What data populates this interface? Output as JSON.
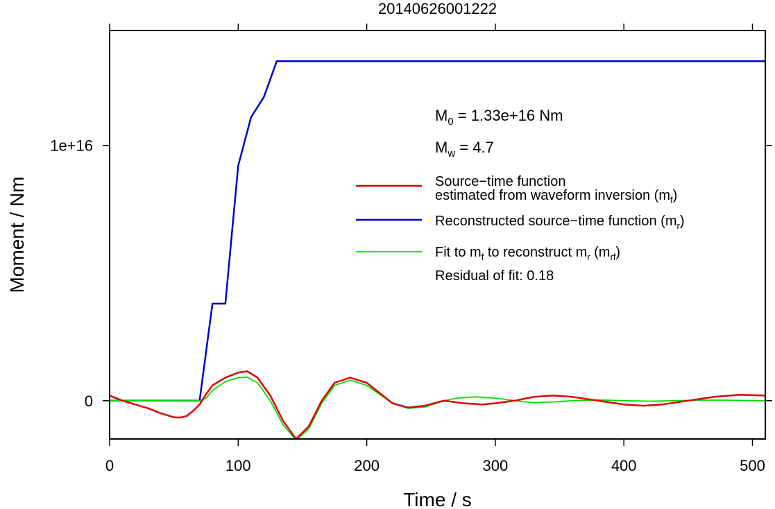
{
  "chart_data": {
    "type": "line",
    "title": "20140626001222",
    "xlabel": "Time / s",
    "ylabel": "Moment / Nm",
    "xlim": [
      0,
      510
    ],
    "ylim": [
      -1500000000000000.0,
      1.45e+16
    ],
    "x_ticks": [
      0,
      100,
      200,
      300,
      400,
      500
    ],
    "x_tick_labels": [
      "0",
      "100",
      "200",
      "300",
      "400",
      "500"
    ],
    "y_ticks": [
      0,
      1e+16
    ],
    "y_tick_labels": [
      "0",
      "1e+16"
    ],
    "grid": false,
    "annotations": {
      "m0": {
        "symbol": "M",
        "sub": "0",
        "text": " = 1.33e+16 Nm"
      },
      "mw": {
        "symbol": "M",
        "sub": "w",
        "text": " = 4.7"
      },
      "residual": "Residual of fit: 0.18"
    },
    "legend": {
      "placement": "right",
      "entries": [
        {
          "line1": "Source−time function",
          "line2": "estimated from waveform inversion (m",
          "sub": "f",
          "tail": ")",
          "color": "#dd0000"
        },
        {
          "line1": "Reconstructed source−time function (m",
          "sub": "r",
          "tail": ")",
          "color": "#0000cc"
        },
        {
          "line1": "Fit to m",
          "sub": "f",
          "mid": " to reconstruct m",
          "sub2": "r",
          "mid2": " (m",
          "sub3": "rf",
          "tail": ")",
          "color": "#00dd00"
        }
      ]
    },
    "series": [
      {
        "name": "Source−time function estimated from waveform inversion (mf)",
        "color": "#dd0000",
        "x": [
          0,
          10,
          20,
          30,
          40,
          50,
          55,
          60,
          65,
          70,
          75,
          80,
          90,
          100,
          107,
          115,
          125,
          135,
          145,
          155,
          165,
          175,
          187,
          200,
          210,
          220,
          232,
          245,
          260,
          275,
          290,
          300,
          315,
          330,
          345,
          360,
          380,
          400,
          415,
          430,
          450,
          470,
          490,
          510
        ],
        "y": [
          200000000000000.0,
          0,
          -150000000000000.0,
          -300000000000000.0,
          -500000000000000.0,
          -650000000000000.0,
          -660000000000000.0,
          -600000000000000.0,
          -400000000000000.0,
          -150000000000000.0,
          250000000000000.0,
          600000000000000.0,
          900000000000000.0,
          1100000000000000.0,
          1150000000000000.0,
          900000000000000.0,
          200000000000000.0,
          -800000000000000.0,
          -1500000000000000.0,
          -1000000000000000.0,
          0,
          700000000000000.0,
          900000000000000.0,
          700000000000000.0,
          300000000000000.0,
          -100000000000000.0,
          -270000000000000.0,
          -200000000000000.0,
          0,
          -100000000000000.0,
          -150000000000000.0,
          -100000000000000.0,
          0,
          150000000000000.0,
          200000000000000.0,
          150000000000000.0,
          0,
          -150000000000000.0,
          -200000000000000.0,
          -150000000000000.0,
          0,
          150000000000000.0,
          230000000000000.0,
          200000000000000.0
        ]
      },
      {
        "name": "Reconstructed source−time function (mr)",
        "color": "#0000cc",
        "x": [
          0,
          70,
          80,
          90,
          100,
          110,
          120,
          130,
          510
        ],
        "y": [
          0,
          0,
          3800000000000000.0,
          3800000000000000.0,
          9200000000000000.0,
          1.11e+16,
          1.19e+16,
          1.33e+16,
          1.33e+16
        ]
      },
      {
        "name": "Fit to mf to reconstruct mr (mrf)",
        "color": "#00dd00",
        "x": [
          0,
          70,
          75,
          80,
          90,
          100,
          107,
          115,
          125,
          135,
          145,
          155,
          165,
          175,
          187,
          200,
          210,
          220,
          232,
          245,
          260,
          270,
          285,
          300,
          315,
          330,
          345,
          360,
          380,
          400,
          420,
          440,
          460,
          480,
          500,
          510
        ],
        "y": [
          0,
          0,
          100000000000000.0,
          400000000000000.0,
          750000000000000.0,
          900000000000000.0,
          920000000000000.0,
          700000000000000.0,
          0,
          -950000000000000.0,
          -1550000000000000.0,
          -1100000000000000.0,
          -100000000000000.0,
          600000000000000.0,
          800000000000000.0,
          600000000000000.0,
          250000000000000.0,
          -100000000000000.0,
          -300000000000000.0,
          -250000000000000.0,
          0,
          100000000000000.0,
          150000000000000.0,
          100000000000000.0,
          0,
          -80000000000000.0,
          -50000000000000.0,
          0,
          30000000000000.0,
          0,
          -20000000000000.0,
          0,
          20000000000000.0,
          20000000000000.0,
          0,
          0
        ]
      }
    ]
  }
}
